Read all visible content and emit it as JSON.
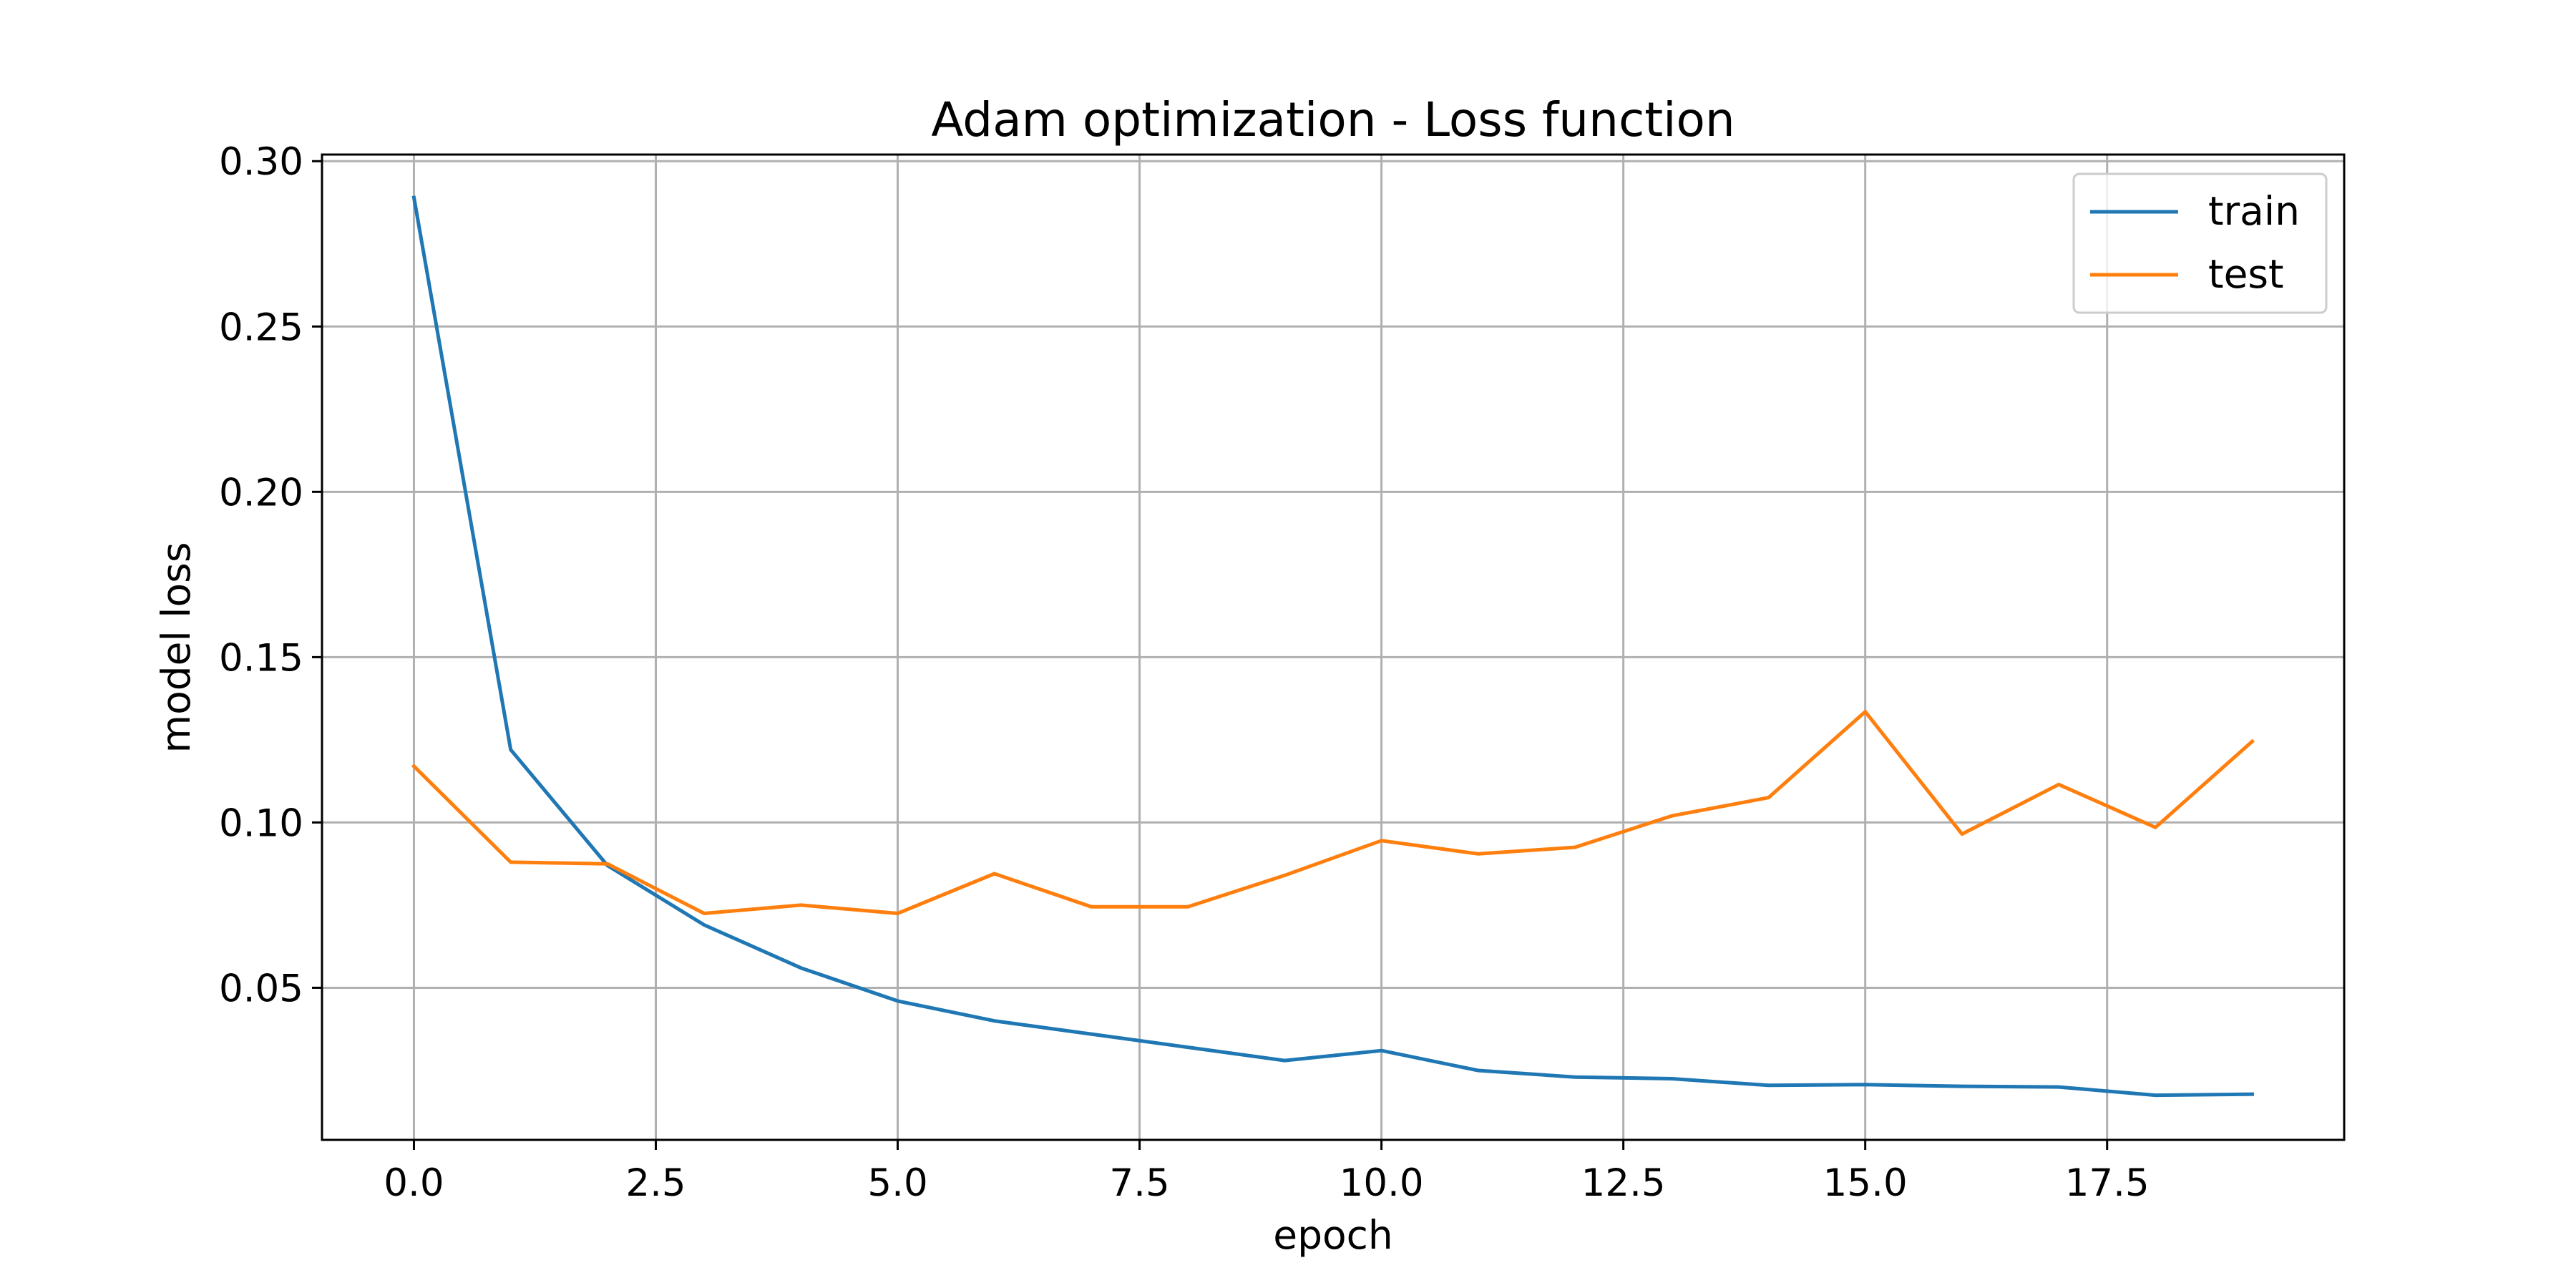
{
  "chart_data": {
    "type": "line",
    "title": "Adam optimization - Loss function",
    "xlabel": "epoch",
    "ylabel": "model loss",
    "x": [
      0,
      1,
      2,
      3,
      4,
      5,
      6,
      7,
      8,
      9,
      10,
      11,
      12,
      13,
      14,
      15,
      16,
      17,
      18,
      19
    ],
    "series": [
      {
        "name": "train",
        "color": "#1f77b4",
        "values": [
          0.289,
          0.122,
          0.087,
          0.069,
          0.056,
          0.046,
          0.04,
          0.036,
          0.032,
          0.028,
          0.031,
          0.025,
          0.023,
          0.0225,
          0.0205,
          0.0207,
          0.0202,
          0.02,
          0.0175,
          0.0178
        ]
      },
      {
        "name": "test",
        "color": "#ff7f0e",
        "values": [
          0.117,
          0.088,
          0.0875,
          0.0725,
          0.075,
          0.0725,
          0.0845,
          0.0745,
          0.0745,
          0.084,
          0.0945,
          0.0905,
          0.0925,
          0.102,
          0.1075,
          0.1335,
          0.0965,
          0.1115,
          0.0985,
          0.1245
        ]
      }
    ],
    "xlim": [
      -0.95,
      19.95
    ],
    "ylim": [
      0.004,
      0.302
    ],
    "xticks": [
      0.0,
      2.5,
      5.0,
      7.5,
      10.0,
      12.5,
      15.0,
      17.5
    ],
    "xtick_labels": [
      "0.0",
      "2.5",
      "5.0",
      "7.5",
      "10.0",
      "12.5",
      "15.0",
      "17.5"
    ],
    "yticks": [
      0.05,
      0.1,
      0.15,
      0.2,
      0.25,
      0.3
    ],
    "ytick_labels": [
      "0.05",
      "0.10",
      "0.15",
      "0.20",
      "0.25",
      "0.30"
    ],
    "grid": true,
    "legend_position": "top-right"
  }
}
